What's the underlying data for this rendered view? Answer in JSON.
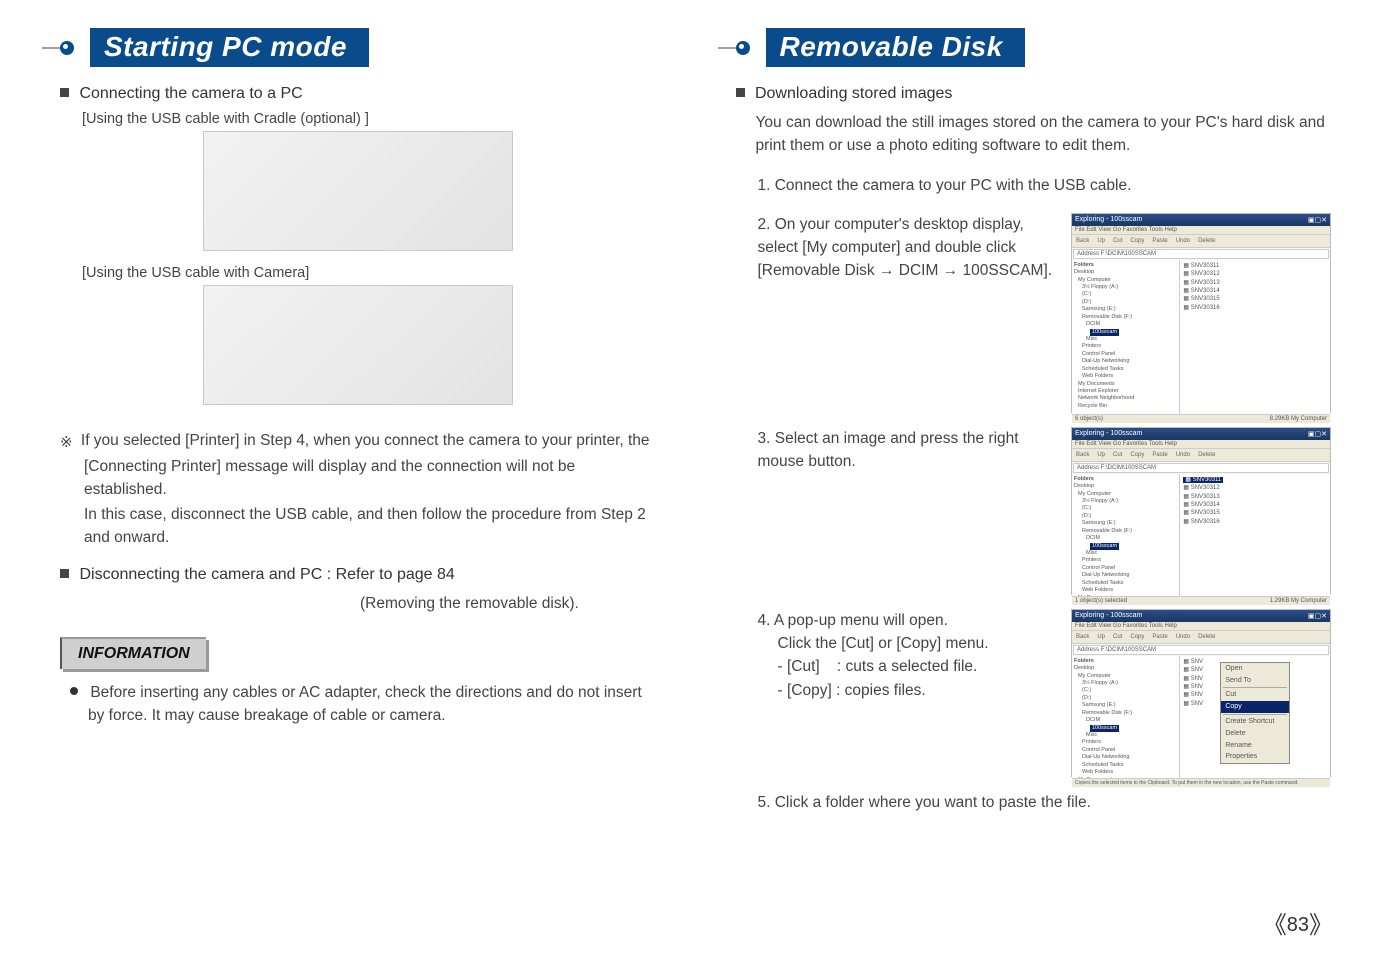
{
  "left": {
    "title": "Starting PC mode",
    "sec1": "Connecting the camera to a PC",
    "label1": "[Using the USB cable with Cradle (optional) ]",
    "label2": "[Using the USB cable with Camera]",
    "note_symbol": "※",
    "note1": "If you selected [Printer] in Step 4, when you connect the camera to your printer, the [Connecting Printer] message will display and the connection will not be established.",
    "note2": "In this case, disconnect the USB cable, and then follow the procedure from Step 2 and onward.",
    "sec2": "Disconnecting the camera and PC : Refer to page 84",
    "sec2b": "(Removing the removable disk).",
    "info_title": "INFORMATION",
    "info_text": "Before inserting any cables or AC adapter, check the directions and do not insert by force. It may cause breakage of cable or camera."
  },
  "right": {
    "title": "Removable Disk",
    "sec1": "Downloading stored images",
    "intro": "You can download the still images stored on the camera to your PC's hard disk and print them or use a photo editing software to edit them.",
    "step1": "1. Connect the camera to your PC with the USB cable.",
    "step2": "2. On your computer's desktop display, select [My computer] and double click [Removable Disk → DCIM → 100SSCAM].",
    "step3": "3. Select an image and press the right mouse button.",
    "step4": "4. A pop-up menu will open.",
    "step4b": "Click the [Cut] or [Copy] menu.",
    "step4c": "- [Cut]    : cuts a selected file.",
    "step4d": "- [Copy] : copies files.",
    "step5": "5. Click a folder where you want to paste the file."
  },
  "ss": {
    "title": "Exploring - 100sscam",
    "menu": "File   Edit   View   Go   Favorites   Tools   Help",
    "toolbar": [
      "Back",
      "Up",
      "Cut",
      "Copy",
      "Paste",
      "Undo",
      "Delete"
    ],
    "address_label": "Address",
    "address": "F:\\DCIM\\100SSCAM",
    "folders_label": "Folders",
    "tree": [
      "Desktop",
      " My Computer",
      "  3½ Floppy (A:)",
      "  (C:)",
      "  (D:)",
      "  Samsung (E:)",
      "  Removable Disk (F:)",
      "   DCIM",
      "    100sscam",
      "   Misc",
      "  Printers",
      "  Control Panel",
      "  Dial-Up Networking",
      "  Scheduled Tasks",
      "  Web Folders",
      " My Documents",
      " Internet Explorer",
      " Network Neighborhood",
      " Recycle Bin"
    ],
    "files": [
      "SNV30311",
      "SNV30312",
      "SNV30313",
      "SNV30314",
      "SNV30315",
      "SNV30316"
    ],
    "status_left": "6 object(s)",
    "status_left_alt": "1 object(s) selected",
    "status_right": "8.29KB   My Computer",
    "status_right_alt": "1.29KB   My Computer",
    "selected_file": "SNV30311",
    "context": [
      "Open",
      "Send To",
      "Cut",
      "Copy",
      "Create Shortcut",
      "Delete",
      "Rename",
      "Properties"
    ],
    "context_hl": "Copy",
    "tip": "Copies the selected items to the Clipboard. To put them in the new location, use the Paste command."
  },
  "page_num": "83"
}
